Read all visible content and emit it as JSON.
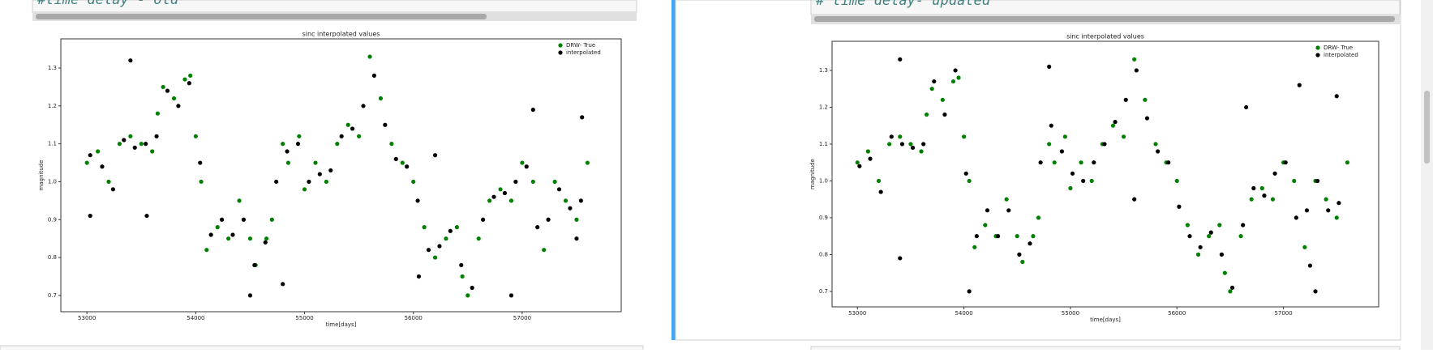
{
  "cells": [
    {
      "code": "#time delay - old"
    },
    {
      "code": "# time delay- updated"
    }
  ],
  "chart_data": [
    {
      "type": "scatter",
      "title": "sinc interpolated values",
      "x_label": "time[days]",
      "y_label": "magnitude",
      "xlim": [
        52760,
        57910
      ],
      "ylim": [
        0.657,
        1.377
      ],
      "xticks": [
        53000,
        54000,
        55000,
        56000,
        57000
      ],
      "yticks": [
        0.7,
        0.8,
        0.9,
        {
          "value": 1,
          "label": "1.0"
        },
        1.1,
        1.2,
        1.3
      ],
      "legend": "upper right",
      "series": [
        {
          "name": "DRW- True",
          "color": "#008000",
          "x": [
            53000,
            53100,
            53200,
            53300,
            53400,
            53500,
            53600,
            53650,
            53700,
            53800,
            53900,
            53950,
            54000,
            54050,
            54100,
            54200,
            54300,
            54400,
            54500,
            54550,
            54650,
            54700,
            54800,
            54850,
            54950,
            55000,
            55100,
            55200,
            55300,
            55400,
            55500,
            55600,
            55700,
            55800,
            55900,
            56000,
            56100,
            56200,
            56300,
            56400,
            56450,
            56500,
            56600,
            56700,
            56800,
            56900,
            57000,
            57100,
            57200,
            57300,
            57400,
            57500,
            57600
          ],
          "values": [
            1.05,
            1.08,
            1.0,
            1.1,
            1.12,
            1.1,
            1.08,
            1.18,
            1.25,
            1.22,
            1.27,
            1.28,
            1.12,
            1.0,
            0.82,
            0.88,
            0.85,
            0.95,
            0.85,
            0.78,
            0.85,
            0.9,
            1.1,
            1.05,
            1.12,
            0.98,
            1.05,
            1.0,
            1.1,
            1.15,
            1.12,
            1.33,
            1.22,
            1.1,
            1.05,
            1.0,
            0.88,
            0.8,
            0.85,
            0.88,
            0.75,
            0.7,
            0.85,
            0.95,
            0.98,
            0.95,
            1.05,
            1.0,
            0.82,
            1.0,
            0.95,
            0.9,
            1.05
          ]
        },
        {
          "name": "interpolated",
          "color": "#000000",
          "x": [
            53030,
            53140,
            53240,
            53340,
            53440,
            53540,
            53640,
            53740,
            53840,
            53940,
            54040,
            54140,
            54240,
            54340,
            54440,
            54540,
            54640,
            54740,
            54840,
            54940,
            55040,
            55140,
            55240,
            55340,
            55440,
            55540,
            55640,
            55740,
            55840,
            55940,
            56040,
            56140,
            56240,
            56340,
            56440,
            56540,
            56640,
            56740,
            56840,
            56940,
            57040,
            57140,
            57240,
            57340,
            57440,
            57540,
            53030,
            53400,
            53550,
            54500,
            54800,
            56050,
            56200,
            56900,
            57100,
            57550,
            57500
          ],
          "values": [
            1.07,
            1.04,
            0.98,
            1.11,
            1.09,
            1.1,
            1.12,
            1.24,
            1.2,
            1.26,
            1.05,
            0.86,
            0.9,
            0.86,
            0.9,
            0.78,
            0.84,
            1.0,
            1.08,
            1.1,
            1.0,
            1.02,
            1.03,
            1.12,
            1.14,
            1.2,
            1.28,
            1.15,
            1.06,
            1.04,
            0.95,
            0.82,
            0.83,
            0.87,
            0.78,
            0.72,
            0.9,
            0.96,
            0.97,
            1.0,
            1.04,
            0.88,
            0.9,
            0.98,
            0.93,
            0.95,
            0.91,
            1.32,
            0.91,
            0.7,
            0.73,
            0.75,
            1.07,
            0.7,
            1.19,
            1.17,
            0.85
          ]
        }
      ]
    },
    {
      "type": "scatter",
      "title": "sinc interpolated values",
      "x_label": "time[days]",
      "y_label": "magnitude",
      "xlim": [
        52762,
        57894
      ],
      "ylim": [
        0.658,
        1.379
      ],
      "xticks": [
        53000,
        54000,
        55000,
        56000,
        57000
      ],
      "yticks": [
        0.7,
        0.8,
        0.9,
        {
          "value": 1,
          "label": "1.0"
        },
        1.1,
        1.2,
        1.3
      ],
      "legend": "upper right",
      "series": [
        {
          "name": "DRW- True",
          "color": "#008000",
          "x": [
            53000,
            53100,
            53200,
            53300,
            53400,
            53500,
            53600,
            53650,
            53700,
            53800,
            53900,
            53950,
            54000,
            54050,
            54100,
            54200,
            54300,
            54400,
            54500,
            54550,
            54650,
            54700,
            54800,
            54850,
            54950,
            55000,
            55100,
            55200,
            55300,
            55400,
            55500,
            55600,
            55700,
            55800,
            55900,
            56000,
            56100,
            56200,
            56300,
            56400,
            56450,
            56500,
            56600,
            56700,
            56800,
            56900,
            57000,
            57100,
            57200,
            57300,
            57400,
            57500,
            57600
          ],
          "values": [
            1.05,
            1.08,
            1.0,
            1.1,
            1.12,
            1.1,
            1.08,
            1.18,
            1.25,
            1.22,
            1.27,
            1.28,
            1.12,
            1.0,
            0.82,
            0.88,
            0.85,
            0.95,
            0.85,
            0.78,
            0.85,
            0.9,
            1.1,
            1.05,
            1.12,
            0.98,
            1.05,
            1.0,
            1.1,
            1.15,
            1.12,
            1.33,
            1.22,
            1.1,
            1.05,
            1.0,
            0.88,
            0.8,
            0.85,
            0.88,
            0.75,
            0.7,
            0.85,
            0.95,
            0.98,
            0.95,
            1.05,
            1.0,
            0.82,
            1.0,
            0.95,
            0.9,
            1.05
          ]
        },
        {
          "name": "interpolated",
          "color": "#000000",
          "x": [
            53020,
            53120,
            53220,
            53320,
            53420,
            53520,
            53620,
            53720,
            53820,
            53920,
            54020,
            54120,
            54220,
            54320,
            54420,
            54520,
            54620,
            54720,
            54820,
            54920,
            55020,
            55120,
            55220,
            55320,
            55420,
            55520,
            55620,
            55720,
            55820,
            55920,
            56020,
            56120,
            56220,
            56320,
            56420,
            56520,
            56620,
            56720,
            56820,
            56920,
            57020,
            57120,
            57220,
            57320,
            57420,
            57520,
            53400,
            53400,
            54050,
            54800,
            56650,
            57150,
            57500,
            57300,
            57250,
            55600
          ],
          "values": [
            1.04,
            1.06,
            0.97,
            1.12,
            1.1,
            1.09,
            1.1,
            1.27,
            1.18,
            1.3,
            1.02,
            0.85,
            0.92,
            0.85,
            0.92,
            0.8,
            0.83,
            1.05,
            1.15,
            1.08,
            1.02,
            1.0,
            1.05,
            1.1,
            1.16,
            1.22,
            1.3,
            1.17,
            1.08,
            1.05,
            0.93,
            0.85,
            0.82,
            0.86,
            0.8,
            0.71,
            0.88,
            0.98,
            0.96,
            1.02,
            1.05,
            0.9,
            0.92,
            1.0,
            0.92,
            0.94,
            1.33,
            0.79,
            0.7,
            1.31,
            1.2,
            1.26,
            1.23,
            0.7,
            0.77,
            0.95
          ]
        }
      ]
    }
  ]
}
